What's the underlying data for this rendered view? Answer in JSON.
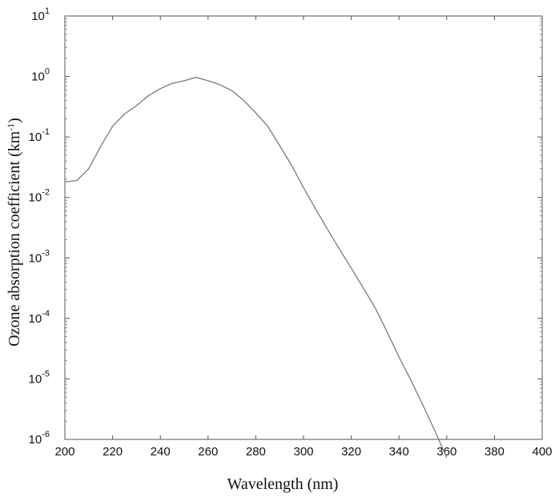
{
  "chart_data": {
    "type": "line",
    "title": "",
    "xlabel": "Wavelength (nm)",
    "ylabel_main": "Ozone absorption coefficient (km",
    "ylabel_sup": "-1",
    "ylabel_tail": ")",
    "xlim": [
      200,
      400
    ],
    "ylim": [
      1e-06,
      10
    ],
    "yscale": "log",
    "grid": false,
    "xticks": [
      "200",
      "220",
      "240",
      "260",
      "280",
      "300",
      "320",
      "340",
      "360",
      "380",
      "400"
    ],
    "yticks": [
      {
        "base": "10",
        "exp": "-6",
        "value": 1e-06
      },
      {
        "base": "10",
        "exp": "-5",
        "value": 1e-05
      },
      {
        "base": "10",
        "exp": "-4",
        "value": 0.0001
      },
      {
        "base": "10",
        "exp": "-3",
        "value": 0.001
      },
      {
        "base": "10",
        "exp": "-2",
        "value": 0.01
      },
      {
        "base": "10",
        "exp": "-1",
        "value": 0.1
      },
      {
        "base": "10",
        "exp": "0",
        "value": 1
      },
      {
        "base": "10",
        "exp": "1",
        "value": 10
      }
    ],
    "series": [
      {
        "color": "#7a7a7a",
        "x": [
          200,
          205,
          210,
          215,
          220,
          225,
          230,
          235,
          240,
          245,
          250,
          255,
          260,
          265,
          270,
          275,
          280,
          285,
          290,
          295,
          300,
          305,
          310,
          315,
          320,
          325,
          330,
          335,
          340,
          345,
          350,
          355,
          360
        ],
        "y": [
          0.018,
          0.019,
          0.03,
          0.07,
          0.15,
          0.24,
          0.33,
          0.48,
          0.63,
          0.77,
          0.85,
          0.97,
          0.85,
          0.73,
          0.58,
          0.4,
          0.25,
          0.15,
          0.072,
          0.034,
          0.0145,
          0.0065,
          0.003,
          0.0014,
          0.00068,
          0.00032,
          0.00015,
          6e-05,
          2.3e-05,
          9.5e-06,
          3.7e-06,
          1.4e-06,
          5e-07
        ]
      }
    ]
  }
}
